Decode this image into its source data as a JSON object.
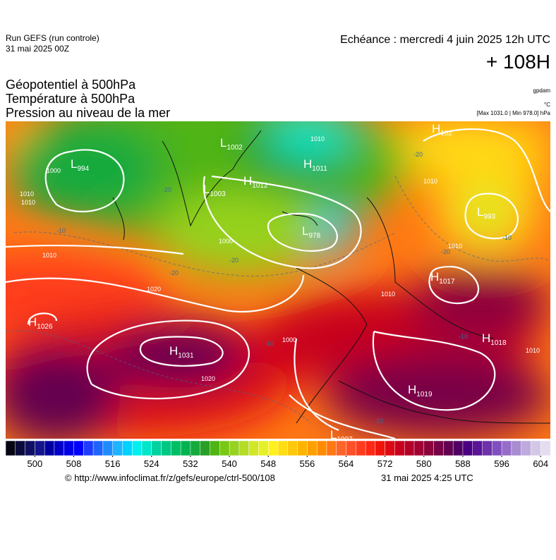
{
  "header": {
    "run": "Run GEFS (run controle)",
    "run_date": "31 mai 2025 00Z",
    "echeance": "Echéance : mercredi 4 juin 2025 12h UTC",
    "lead": "+ 108H"
  },
  "titles": [
    "Géopotentiel à 500hPa",
    "Température à 500hPa",
    "Pression au niveau de la mer"
  ],
  "units": {
    "geopotential": "gpdam",
    "temperature": "°C",
    "pressure": "[Max 1031.0 | Min 978.0] hPa"
  },
  "centers": [
    {
      "kind": "L",
      "pressure": "994"
    },
    {
      "kind": "L",
      "pressure": "1002"
    },
    {
      "kind": "H",
      "pressure": "1011"
    },
    {
      "kind": "H",
      "pressure": "1012"
    },
    {
      "kind": "L",
      "pressure": "1003"
    },
    {
      "kind": "L",
      "pressure": "978"
    },
    {
      "kind": "H",
      "pressure": "1026"
    },
    {
      "kind": "H",
      "pressure": "1031"
    },
    {
      "kind": "H",
      "pressure": "1017"
    },
    {
      "kind": "H",
      "pressure": "1018"
    },
    {
      "kind": "H",
      "pressure": "1019"
    },
    {
      "kind": "L",
      "pressure": "1007"
    },
    {
      "kind": "L",
      "pressure": "993"
    },
    {
      "kind": "H",
      "pressure": "102"
    }
  ],
  "isobar_labels": [
    "1000",
    "1010",
    "1010",
    "1000",
    "1010",
    "1020",
    "1010",
    "1010",
    "1000",
    "1010",
    "1010",
    "1010",
    "1020"
  ],
  "isotherm_labels": [
    "-20",
    "-10",
    "-20",
    "-20",
    "-10",
    "-20",
    "-10",
    "-10",
    "-10",
    "-20"
  ],
  "colorbar": {
    "range": [
      494,
      606
    ],
    "ticks": [
      500,
      508,
      516,
      524,
      532,
      540,
      548,
      556,
      564,
      572,
      580,
      588,
      596,
      604
    ],
    "colors": [
      "#050514",
      "#0a0a3c",
      "#0f0f64",
      "#14148c",
      "#0000a0",
      "#0000c8",
      "#0000e6",
      "#0000ff",
      "#1e3cff",
      "#1e64ff",
      "#1e8cff",
      "#1eb4ff",
      "#00d2ff",
      "#00f0f0",
      "#00e6c8",
      "#00d2a0",
      "#00c882",
      "#00be64",
      "#00b450",
      "#14aa3c",
      "#28a028",
      "#50b414",
      "#78c814",
      "#96d21e",
      "#b4dc28",
      "#d2e628",
      "#e6f028",
      "#fff01e",
      "#ffdc14",
      "#ffc80a",
      "#ffb400",
      "#ffa000",
      "#ff8c00",
      "#ff7814",
      "#ff6428",
      "#ff5028",
      "#ff3c1e",
      "#ff2814",
      "#f0140a",
      "#dc0a14",
      "#c8001e",
      "#b40028",
      "#a00032",
      "#8c003c",
      "#780046",
      "#640050",
      "#500064",
      "#4b0082",
      "#5a1496",
      "#6e32aa",
      "#8250be",
      "#966ec8",
      "#aa8cd2",
      "#beaadc",
      "#d2c8e6",
      "#e6dcf0"
    ]
  },
  "footer": {
    "url": "© http://www.infoclimat.fr/z/gefs/europe/ctrl-500/108",
    "generated": "31 mai 2025  4:25 UTC"
  }
}
